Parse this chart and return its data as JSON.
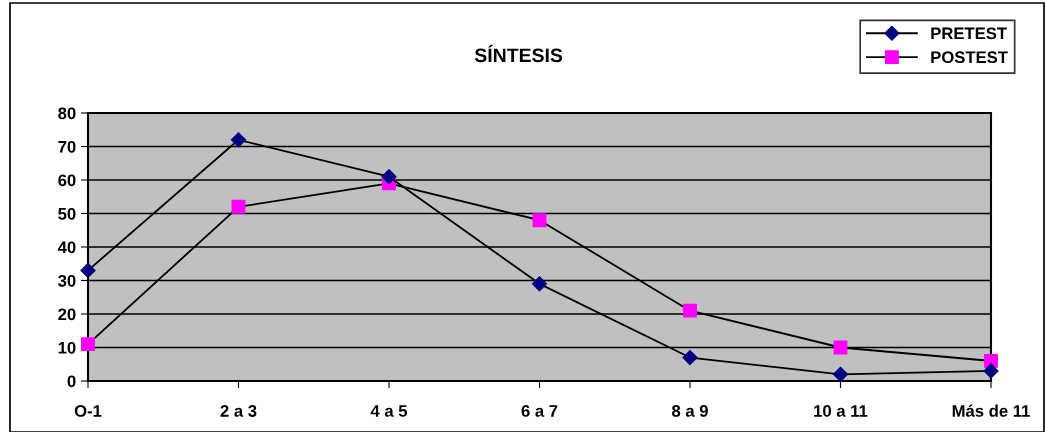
{
  "chart_data": {
    "type": "line",
    "title": "SÍNTESIS",
    "categories": [
      "O-1",
      "2 a 3",
      "4 a 5",
      "6 a 7",
      "8 a 9",
      "10 a 11",
      "Más de 11"
    ],
    "series": [
      {
        "name": "PRETEST",
        "color": "#000080",
        "marker": "diamond",
        "values": [
          33,
          72,
          61,
          29,
          7,
          2,
          3
        ]
      },
      {
        "name": "POSTEST",
        "color": "#ff00ff",
        "marker": "square",
        "values": [
          11,
          52,
          59,
          48,
          21,
          10,
          6
        ]
      }
    ],
    "ylim": [
      0,
      80
    ],
    "yticks": [
      0,
      10,
      20,
      30,
      40,
      50,
      60,
      70,
      80
    ],
    "grid": "y",
    "legend": "top right",
    "line_style": "solid"
  }
}
